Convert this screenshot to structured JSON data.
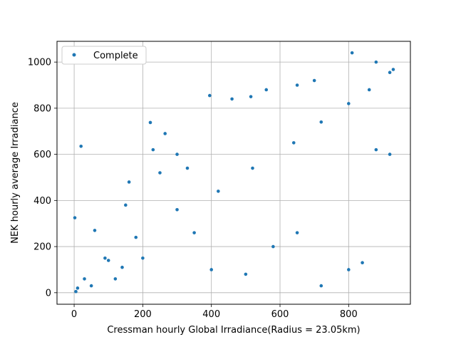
{
  "chart_data": {
    "type": "scatter",
    "title": "",
    "xlabel": "Cressman hourly Global Irradiance(Radius = 23.05km)",
    "ylabel": "NEK hourly average Irradiance",
    "xlim": [
      -50,
      980
    ],
    "ylim": [
      -50,
      1090
    ],
    "xticks": [
      0,
      200,
      400,
      600,
      800
    ],
    "yticks": [
      0,
      200,
      400,
      600,
      800,
      1000
    ],
    "grid": true,
    "legend_position": "top-left",
    "series": [
      {
        "name": "Complete",
        "color": "#1f77b4",
        "points": [
          [
            2,
            325
          ],
          [
            20,
            635
          ],
          [
            222,
            738
          ],
          [
            265,
            690
          ],
          [
            395,
            855
          ],
          [
            515,
            850
          ],
          [
            810,
            1040
          ],
          [
            880,
            1000
          ],
          [
            460,
            840
          ],
          [
            560,
            880
          ],
          [
            650,
            900
          ],
          [
            700,
            920
          ],
          [
            90,
            150
          ],
          [
            100,
            140
          ],
          [
            140,
            110
          ],
          [
            200,
            150
          ],
          [
            180,
            240
          ],
          [
            300,
            360
          ],
          [
            420,
            440
          ],
          [
            520,
            540
          ],
          [
            640,
            650
          ],
          [
            720,
            740
          ],
          [
            800,
            820
          ],
          [
            860,
            880
          ],
          [
            920,
            955
          ],
          [
            930,
            968
          ],
          [
            400,
            100
          ],
          [
            500,
            80
          ],
          [
            720,
            30
          ],
          [
            800,
            100
          ],
          [
            840,
            130
          ],
          [
            880,
            620
          ],
          [
            920,
            600
          ],
          [
            580,
            200
          ],
          [
            650,
            260
          ],
          [
            350,
            260
          ],
          [
            250,
            520
          ],
          [
            300,
            600
          ],
          [
            150,
            380
          ],
          [
            60,
            270
          ],
          [
            30,
            60
          ],
          [
            10,
            20
          ],
          [
            5,
            5
          ],
          [
            50,
            30
          ],
          [
            120,
            60
          ],
          [
            160,
            480
          ],
          [
            230,
            620
          ],
          [
            330,
            540
          ]
        ]
      }
    ]
  }
}
